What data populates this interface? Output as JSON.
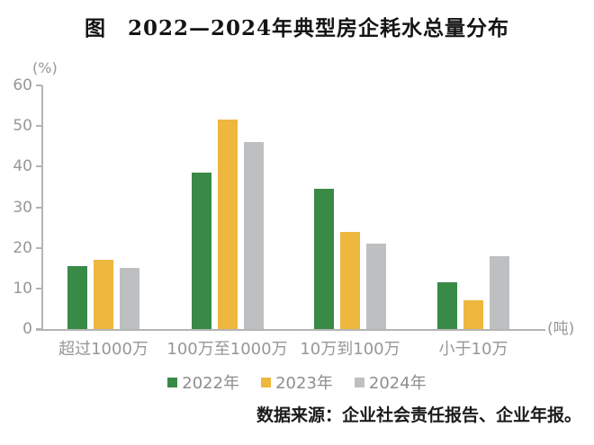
{
  "title": "图　2022—2024年典型房企耗水总量分布",
  "source": "数据来源：企业社会责任报告、企业年报。",
  "chart_data": {
    "type": "bar",
    "title": "图 2022—2024年典型房企耗水总量分布",
    "xlabel": "",
    "ylabel": "",
    "y_unit": "(%)",
    "x_unit": "(吨)",
    "categories": [
      "超过1000万",
      "100万至1000万",
      "10万到100万",
      "小于10万"
    ],
    "series": [
      {
        "name": "2022年",
        "color": "#3a8a47",
        "values": [
          15.5,
          38.5,
          34.5,
          11.5
        ]
      },
      {
        "name": "2023年",
        "color": "#eeb73e",
        "values": [
          17,
          51.5,
          24,
          7
        ]
      },
      {
        "name": "2024年",
        "color": "#bdbfc1",
        "values": [
          15,
          46,
          21,
          18
        ]
      }
    ],
    "ylim": [
      0,
      60
    ],
    "yticks": [
      0,
      10,
      20,
      30,
      40,
      50,
      60
    ],
    "grid": false,
    "legend_position": "bottom"
  },
  "colors": {
    "axis": "#b4b4b4",
    "tick_text": "#979797",
    "title_text": "#141414",
    "source_text": "#1a1a1a",
    "background": "#ffffff"
  }
}
